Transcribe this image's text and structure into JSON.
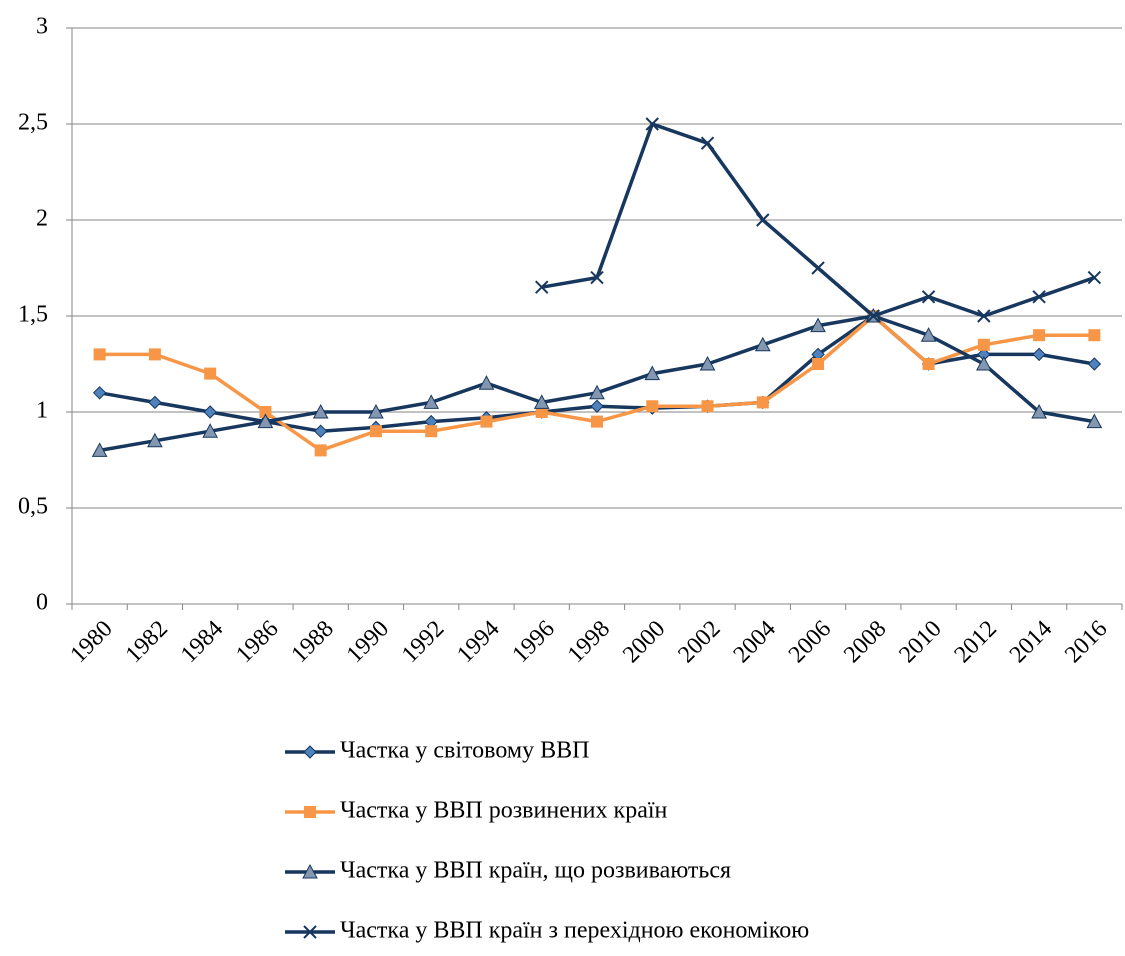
{
  "chart_data": {
    "type": "line",
    "categories": [
      "1980",
      "1982",
      "1984",
      "1986",
      "1988",
      "1990",
      "1992",
      "1994",
      "1996",
      "1998",
      "2000",
      "2002",
      "2004",
      "2006",
      "2008",
      "2010",
      "2012",
      "2014",
      "2016"
    ],
    "series": [
      {
        "name": "Частка у світовому ВВП",
        "color": "#17375e",
        "marker": "diamond",
        "marker_color": "#4f81bd",
        "values": [
          1.1,
          1.05,
          1.0,
          0.95,
          0.9,
          0.92,
          0.95,
          0.97,
          1.0,
          1.03,
          1.02,
          1.03,
          1.05,
          1.3,
          1.5,
          1.25,
          1.3,
          1.3,
          1.25
        ]
      },
      {
        "name": "Частка у ВВП розвинених країн",
        "color": "#f79646",
        "marker": "square",
        "marker_color": "#f79646",
        "values": [
          1.3,
          1.3,
          1.2,
          1.0,
          0.8,
          0.9,
          0.9,
          0.95,
          1.0,
          0.95,
          1.03,
          1.03,
          1.05,
          1.25,
          1.5,
          1.25,
          1.35,
          1.4,
          1.4
        ]
      },
      {
        "name": "Частка у ВВП країн, що розвиваються",
        "color": "#17375e",
        "marker": "triangle",
        "marker_color": "#8497b0",
        "values": [
          0.8,
          0.85,
          0.9,
          0.95,
          1.0,
          1.0,
          1.05,
          1.15,
          1.05,
          1.1,
          1.2,
          1.25,
          1.35,
          1.45,
          1.5,
          1.4,
          1.25,
          1.0,
          0.95
        ]
      },
      {
        "name": "Частка у ВВП країн з перехідною економікою",
        "color": "#17375e",
        "marker": "x",
        "marker_color": "#17375e",
        "values": [
          null,
          null,
          null,
          null,
          null,
          null,
          null,
          null,
          1.65,
          1.7,
          2.5,
          2.4,
          2.0,
          1.75,
          1.5,
          1.6,
          1.5,
          1.6,
          1.7
        ]
      }
    ],
    "ylim": [
      0,
      3
    ],
    "yticks": [
      0,
      {
        "value": 0.5,
        "label": "0,5"
      },
      1,
      {
        "value": 1.5,
        "label": "1,5"
      },
      2,
      {
        "value": 2.5,
        "label": "2,5"
      },
      3
    ],
    "grid": true,
    "legend": "bottom"
  }
}
